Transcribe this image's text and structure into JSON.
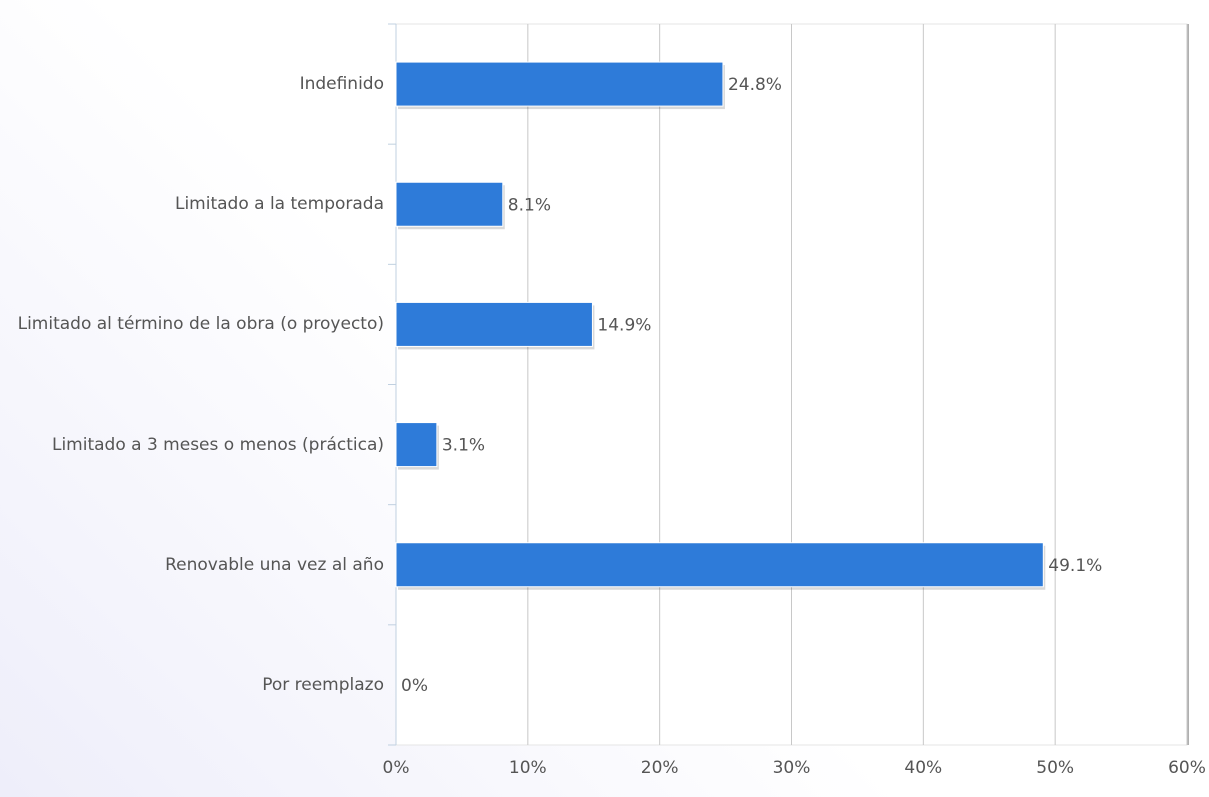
{
  "chart_data": {
    "type": "bar",
    "orientation": "horizontal",
    "categories": [
      "Indefinido",
      "Limitado a la temporada",
      "Limitado al término de la obra (o proyecto)",
      "Limitado a 3 meses o menos (práctica)",
      "Renovable una vez al año",
      "Por reemplazo"
    ],
    "values": [
      24.8,
      8.1,
      14.9,
      3.1,
      49.1,
      0
    ],
    "value_labels": [
      "24.8%",
      "8.1%",
      "14.9%",
      "3.1%",
      "49.1%",
      "0%"
    ],
    "color": "#2e7bd9",
    "xlim": [
      0,
      60
    ],
    "xticks": [
      {
        "value": 0,
        "label": "0%"
      },
      {
        "value": 10,
        "label": "10%"
      },
      {
        "value": 20,
        "label": "20%"
      },
      {
        "value": 30,
        "label": "30%"
      },
      {
        "value": 40,
        "label": "40%"
      },
      {
        "value": 50,
        "label": "50%"
      },
      {
        "value": 60,
        "label": "60%"
      }
    ],
    "grid": true
  }
}
